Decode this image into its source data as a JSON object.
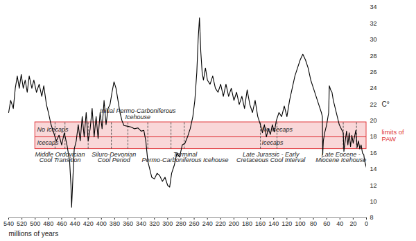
{
  "chart_data": {
    "type": "line",
    "color": "#000000",
    "x_label": "millions of years",
    "y_label": "C°",
    "xlim": [
      540,
      0
    ],
    "xticks": [
      540,
      520,
      500,
      480,
      460,
      440,
      420,
      400,
      380,
      360,
      340,
      320,
      300,
      280,
      260,
      240,
      220,
      200,
      180,
      160,
      140,
      120,
      100,
      80,
      60,
      40,
      20,
      0
    ],
    "ylim": [
      8,
      34
    ],
    "yticks": [
      8,
      10,
      12,
      14,
      16,
      18,
      20,
      22,
      24,
      26,
      28,
      30,
      32,
      34
    ],
    "grid": false,
    "x": [
      540,
      537,
      533,
      530,
      527,
      524,
      521,
      518,
      515,
      512,
      509,
      505,
      502,
      498,
      494,
      490,
      487,
      483,
      480,
      476,
      472,
      468,
      464,
      460,
      456,
      452,
      448,
      446,
      445,
      443,
      441,
      438,
      435,
      432,
      429,
      426,
      423,
      420,
      417,
      414,
      411,
      408,
      405,
      402,
      399,
      396,
      393,
      390,
      387,
      384,
      381,
      378,
      375,
      372,
      369,
      366,
      360,
      355,
      350,
      345,
      340,
      336,
      333,
      330,
      327,
      324,
      320,
      316,
      312,
      308,
      304,
      300,
      297,
      294,
      290,
      286,
      282,
      278,
      274,
      270,
      266,
      262,
      259,
      256,
      254,
      252,
      250,
      248,
      246,
      243,
      240,
      236,
      232,
      228,
      224,
      220,
      216,
      212,
      208,
      204,
      200,
      196,
      192,
      188,
      184,
      180,
      176,
      172,
      168,
      164,
      160,
      157,
      154,
      151,
      148,
      145,
      142,
      139,
      136,
      132,
      128,
      124,
      120,
      116,
      112,
      108,
      104,
      100,
      96,
      92,
      88,
      84,
      80,
      76,
      72,
      68,
      66.5,
      66,
      65,
      63,
      60,
      57,
      56,
      54,
      52,
      50,
      47,
      44,
      41,
      38,
      35,
      34,
      32,
      30,
      28,
      26,
      24,
      22,
      20,
      18,
      16,
      14,
      12,
      10,
      8,
      6,
      4,
      3,
      2,
      1,
      0
    ],
    "values": [
      21,
      22.5,
      21.5,
      24,
      25.5,
      24,
      25.7,
      24,
      25,
      23.5,
      25.5,
      24,
      25,
      23.5,
      24.5,
      23,
      24.3,
      22,
      21,
      19.5,
      18.5,
      17.5,
      18.2,
      17,
      18.5,
      17,
      15,
      12,
      9.3,
      13,
      16.5,
      17.5,
      19.5,
      17.5,
      20.5,
      18,
      21,
      17.5,
      19,
      21.5,
      18,
      20.5,
      17.8,
      21,
      19,
      22.5,
      19.5,
      21.5,
      22,
      23.5,
      24.8,
      24,
      22.5,
      21,
      20,
      19.4,
      19.3,
      19.2,
      19,
      19.1,
      18.7,
      18.8,
      17.5,
      15,
      14,
      13,
      12.8,
      13.5,
      13.2,
      12.5,
      13,
      12,
      11.8,
      13.5,
      14.5,
      16,
      15.5,
      17,
      17.2,
      18,
      19,
      20.5,
      22.5,
      26,
      30,
      32.7,
      28.5,
      26,
      25,
      26.5,
      25,
      24.5,
      25.5,
      24,
      23.5,
      24.5,
      23,
      24.5,
      23,
      24,
      22.5,
      23.5,
      22,
      23,
      21.5,
      23.8,
      22,
      21,
      22.5,
      20.5,
      19.5,
      18.5,
      19.5,
      18,
      19,
      18.3,
      19.5,
      18.6,
      20,
      21,
      20.5,
      21.8,
      20.5,
      22.5,
      24,
      25.5,
      26.5,
      27.5,
      28.2,
      27.5,
      26.5,
      25,
      24,
      23,
      22,
      21,
      20.5,
      15.8,
      17.5,
      18.5,
      19.5,
      21,
      24.3,
      23.8,
      23.5,
      22.5,
      21.5,
      20.5,
      19.5,
      19,
      18.5,
      16.2,
      17.5,
      18.7,
      17,
      18.5,
      16.8,
      18.2,
      17.2,
      18,
      18.8,
      16.7,
      17.5,
      16.5,
      17,
      16,
      15.8,
      15.2,
      14.8,
      14.5,
      14.2
    ],
    "band": {
      "name": "limits of PAW",
      "color": "#e0383c",
      "range": [
        16.5,
        19.8
      ],
      "divider": 18,
      "x_range": [
        500,
        0
      ],
      "upper_labels": [
        "No Icecaps",
        "No icecaps"
      ],
      "lower_labels": [
        "Icecaps",
        "Icecaps"
      ],
      "label_x": [
        497,
        158
      ]
    },
    "intervals": [
      {
        "label": "Middle Ordovician Cool Transition",
        "range": [
          470,
          455
        ]
      },
      {
        "label": "Siluro-Devonian Cool Period",
        "range": [
          420,
          385
        ]
      },
      {
        "label": "Initial Permo-Carboniferous Icehouse",
        "range": [
          360,
          330
        ]
      },
      {
        "label": "Terminal Permo-Carboniferous Icehouse",
        "range": [
          295,
          275
        ]
      },
      {
        "label": "Late Jurassic - Early Cretaceous Cool Interval",
        "range": [
          160,
          135
        ]
      },
      {
        "label": "Late Eocene - Miocene Icehouse",
        "range": [
          35,
          15
        ]
      }
    ]
  }
}
